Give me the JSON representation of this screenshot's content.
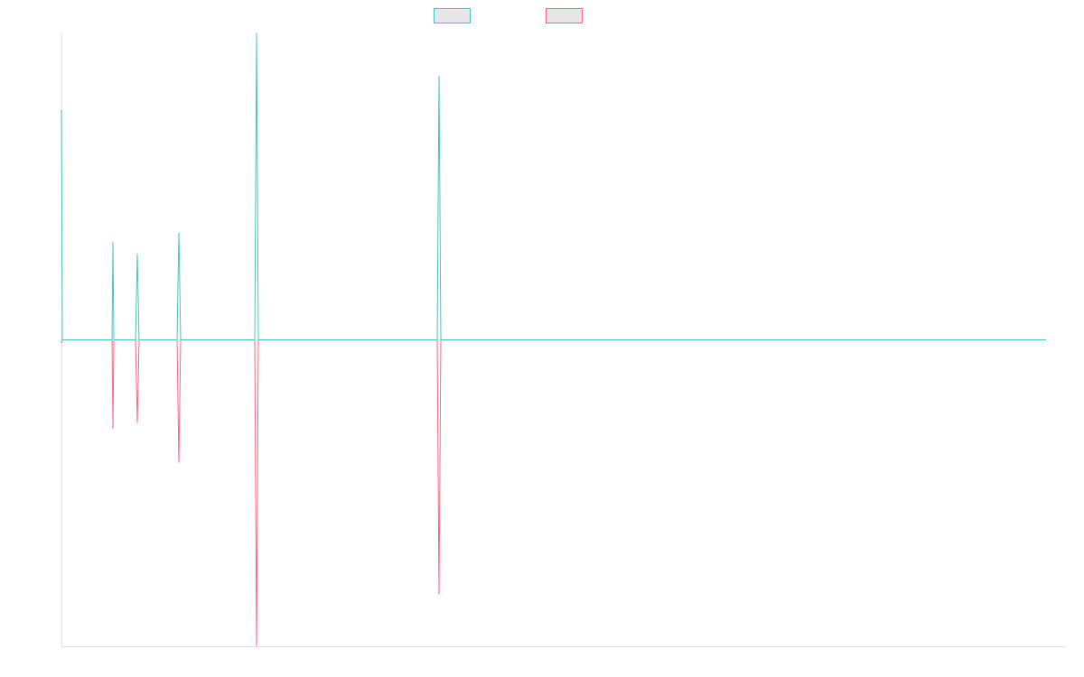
{
  "chart_data": {
    "type": "line",
    "title": "",
    "xlabel": "",
    "ylabel": "",
    "grid": false,
    "legend": "top-center",
    "ylim": [
      -100,
      100
    ],
    "series": [
      {
        "color": "#4bc0c0",
        "x": [
          0,
          1,
          56,
          57,
          58,
          82,
          84,
          86,
          128,
          130,
          132,
          214,
          216,
          218,
          416,
          418,
          420,
          1090
        ],
        "values": [
          75,
          0,
          0,
          32,
          0,
          0,
          28,
          0,
          0,
          35,
          0,
          0,
          100,
          0,
          0,
          86,
          0,
          0
        ]
      },
      {
        "color": "#ff6384",
        "x": [
          0,
          1,
          56,
          57,
          58,
          82,
          84,
          86,
          128,
          130,
          132,
          214,
          216,
          218,
          416,
          418,
          420,
          1090
        ],
        "values": [
          -1,
          0,
          0,
          -29,
          0,
          0,
          -27,
          0,
          0,
          -40,
          0,
          0,
          -100,
          0,
          0,
          -83,
          0,
          0
        ]
      }
    ]
  }
}
